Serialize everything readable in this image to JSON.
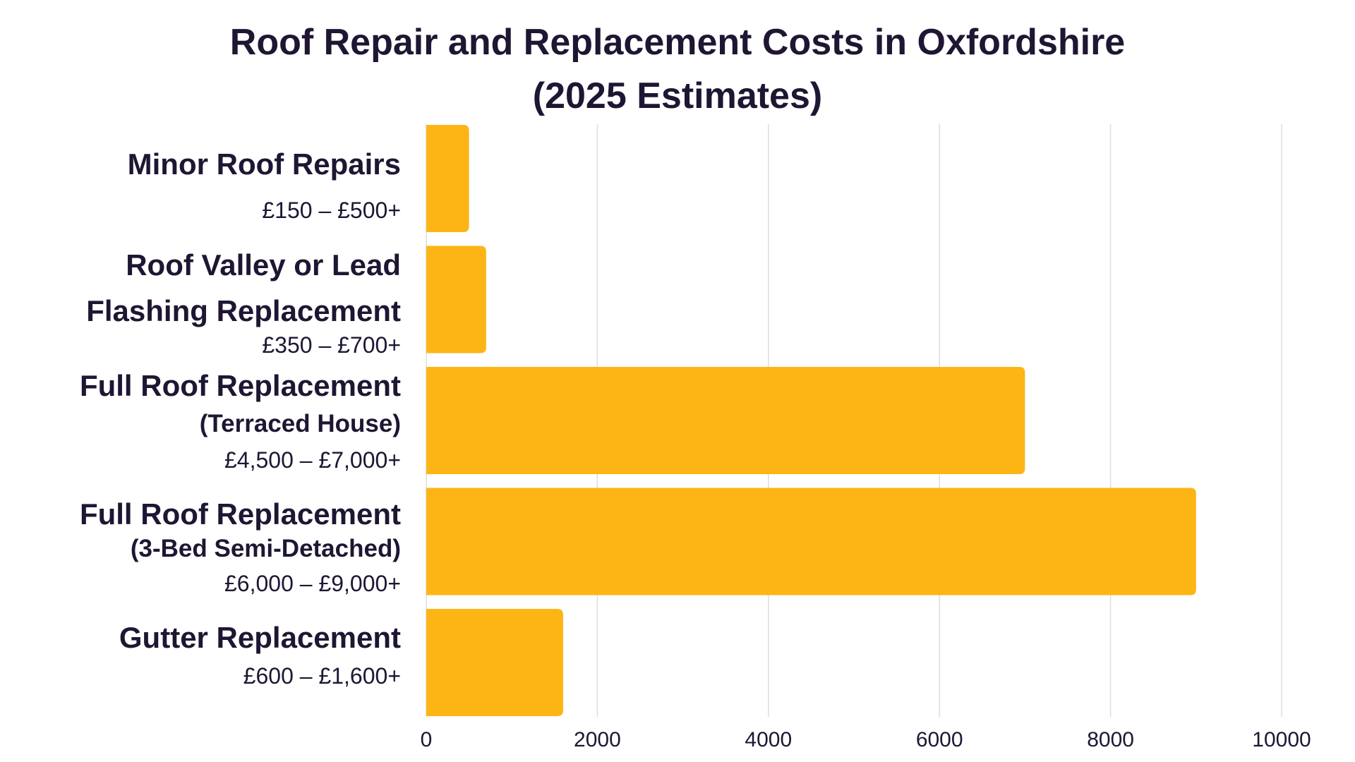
{
  "title_lines": [
    "Roof Repair and Replacement Costs in Oxfordshire",
    "(2025 Estimates)"
  ],
  "chart_data": {
    "type": "bar",
    "orientation": "horizontal",
    "title": "Roof Repair and Replacement Costs in Oxfordshire (2025 Estimates)",
    "categories": [
      {
        "lines": [
          "Minor Roof Repairs"
        ],
        "range": "£150 – £500+"
      },
      {
        "lines": [
          "Roof Valley or Lead",
          "Flashing Replacement"
        ],
        "range": "£350 – £700+"
      },
      {
        "lines": [
          "Full Roof Replacement",
          "(Terraced House)"
        ],
        "range": "£4,500 – £7,000+"
      },
      {
        "lines": [
          "Full Roof Replacement",
          "(3-Bed Semi-Detached)"
        ],
        "range": "£6,000 – £9,000+"
      },
      {
        "lines": [
          "Gutter Replacement"
        ],
        "range": "£600 – £1,600+"
      }
    ],
    "values": [
      500,
      700,
      7000,
      9000,
      1600
    ],
    "xlim": [
      0,
      10000
    ],
    "xticks": [
      0,
      2000,
      4000,
      6000,
      8000,
      10000
    ],
    "xlabel": "",
    "ylabel": "",
    "grid": "vertical",
    "legend": "none",
    "bar_color": "#fdb515",
    "grid_color": "#dddddd",
    "text_color": "#1f1633"
  }
}
